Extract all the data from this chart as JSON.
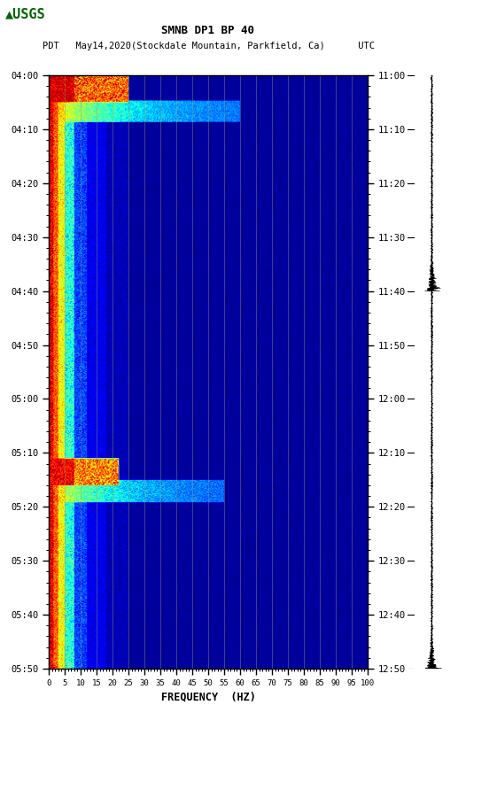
{
  "title_line1": "SMNB DP1 BP 40",
  "title_line2": "PDT   May14,2020(Stockdale Mountain, Parkfield, Ca)      UTC",
  "xlabel": "FREQUENCY  (HZ)",
  "freq_min": 0,
  "freq_max": 100,
  "left_yticks": [
    "04:00",
    "04:10",
    "04:20",
    "04:30",
    "04:40",
    "04:50",
    "05:00",
    "05:10",
    "05:20",
    "05:30",
    "05:40",
    "05:50"
  ],
  "right_yticks": [
    "11:00",
    "11:10",
    "11:20",
    "11:30",
    "11:40",
    "11:50",
    "12:00",
    "12:10",
    "12:20",
    "12:30",
    "12:40",
    "12:50"
  ],
  "xticks": [
    0,
    5,
    10,
    15,
    20,
    25,
    30,
    35,
    40,
    45,
    50,
    55,
    60,
    65,
    70,
    75,
    80,
    85,
    90,
    95,
    100
  ],
  "xtick_labels": [
    "0",
    "5",
    "10",
    "15",
    "20",
    "25",
    "30",
    "35",
    "40",
    "45",
    "50",
    "55",
    "60",
    "65",
    "70",
    "75",
    "80",
    "85",
    "90",
    "95",
    "100"
  ],
  "vline_freqs": [
    5,
    10,
    15,
    20,
    25,
    30,
    35,
    40,
    45,
    50,
    55,
    60,
    65,
    70,
    75,
    80,
    85,
    90,
    95,
    100
  ],
  "colormap": "jet",
  "fig_bg": "#ffffff",
  "usgs_color": "#006400",
  "event1_rows": [
    0,
    5
  ],
  "event2_rows": [
    71,
    76
  ],
  "low_freq_bins_strong": 3,
  "low_freq_bins_medium": 8,
  "low_freq_bins_taper": 18
}
